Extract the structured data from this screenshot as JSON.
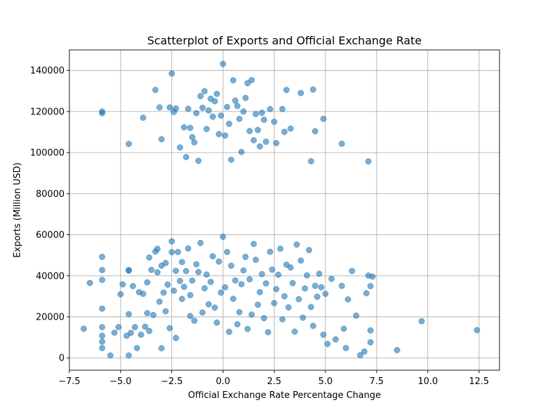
{
  "chart_data": {
    "type": "scatter",
    "title": "Scatterplot of Exports and Official Exchange Rate",
    "xlabel": "Official Exchange Rate Percentage Change",
    "ylabel": "Exports (Million USD)",
    "xlim": [
      -7.5,
      13.5
    ],
    "ylim": [
      -6000,
      150000
    ],
    "xticks": [
      -7.5,
      -5.0,
      -2.5,
      0.0,
      2.5,
      5.0,
      7.5,
      10.0,
      12.5
    ],
    "xtick_labels": [
      "−7.5",
      "−5.0",
      "−2.5",
      "0.0",
      "2.5",
      "5.0",
      "7.5",
      "10.0",
      "12.5"
    ],
    "yticks": [
      0,
      20000,
      40000,
      60000,
      80000,
      100000,
      120000,
      140000
    ],
    "ytick_labels": [
      "0",
      "20000",
      "40000",
      "60000",
      "80000",
      "100000",
      "120000",
      "140000"
    ],
    "grid": true,
    "marker_color": "#1f77b4",
    "marker_alpha": 0.6,
    "series": [
      {
        "x": [
          -6.8,
          -6.5,
          -5.9,
          -5.9,
          -5.9,
          -5.9,
          -5.9,
          -5.9,
          -5.9,
          -5.9,
          -5.9,
          -5.5,
          -5.3,
          -5.1,
          -5.0,
          -4.9,
          -4.7,
          -4.6,
          -4.6,
          -4.6,
          -4.6,
          -4.5,
          -4.4,
          -4.3,
          -4.2,
          -4.1,
          -4.0,
          -3.9,
          -3.8,
          -3.7,
          -3.7,
          -3.6,
          -3.6,
          -3.5,
          -3.4,
          -3.3,
          -3.2,
          -3.2,
          -3.1,
          -3.0,
          -3.0,
          -2.9,
          -2.8,
          -2.8,
          -2.7,
          -2.6,
          -2.5,
          -2.5,
          -2.4,
          -2.3,
          -2.3,
          -2.2,
          -2.1,
          -2.0,
          -2.0,
          -1.9,
          -1.8,
          -1.7,
          -1.6,
          -1.6,
          -1.5,
          -1.4,
          -1.3,
          -1.2,
          -1.1,
          -1.0,
          -0.9,
          -0.8,
          -0.7,
          -0.6,
          -0.5,
          -0.4,
          -0.3,
          -0.2,
          -0.1,
          0.0,
          0.1,
          0.2,
          0.3,
          0.4,
          0.5,
          0.6,
          0.7,
          0.8,
          0.9,
          1.0,
          1.1,
          1.2,
          1.3,
          1.4,
          1.5,
          1.6,
          1.7,
          1.8,
          1.9,
          2.0,
          2.1,
          2.2,
          2.3,
          2.4,
          2.5,
          2.6,
          2.7,
          2.8,
          2.9,
          3.0,
          3.1,
          3.2,
          3.3,
          3.4,
          3.5,
          3.6,
          3.7,
          3.8,
          3.9,
          4.0,
          4.1,
          4.2,
          4.3,
          4.4,
          4.5,
          4.6,
          4.7,
          4.8,
          4.9,
          5.0,
          5.1,
          5.3,
          5.5,
          5.8,
          5.9,
          6.0,
          6.1,
          6.3,
          6.5,
          6.7,
          6.9,
          7.0,
          7.1,
          7.2,
          7.2,
          7.2,
          7.3,
          8.5,
          9.7,
          12.4,
          -5.9,
          -4.6,
          -3.9,
          -3.3,
          -3.1,
          -3.0,
          -2.6,
          -2.5,
          -2.4,
          -2.3,
          -2.1,
          -1.9,
          -1.8,
          -1.7,
          -1.6,
          -1.5,
          -1.4,
          -1.3,
          -1.2,
          -1.1,
          -1.0,
          -0.9,
          -0.8,
          -0.7,
          -0.6,
          -0.5,
          -0.4,
          -0.3,
          -0.2,
          -0.1,
          0.0,
          0.1,
          0.2,
          0.3,
          0.4,
          0.5,
          0.6,
          0.7,
          0.8,
          0.9,
          1.0,
          1.1,
          1.2,
          1.3,
          1.4,
          1.5,
          1.6,
          1.7,
          1.8,
          1.9,
          2.0,
          2.1,
          2.3,
          2.5,
          2.6,
          2.9,
          3.0,
          3.1,
          3.3,
          3.8,
          4.3,
          4.4,
          4.5,
          4.9,
          5.8,
          7.1
        ],
        "y": [
          14200,
          36500,
          119200,
          49200,
          42800,
          38000,
          24000,
          15000,
          10800,
          7900,
          4800,
          1200,
          12300,
          15000,
          31000,
          35800,
          10800,
          42800,
          42500,
          21300,
          1200,
          12200,
          35000,
          15000,
          4800,
          32000,
          11300,
          31200,
          15200,
          21800,
          36800,
          13100,
          48900,
          42900,
          20900,
          51800,
          53100,
          41700,
          27400,
          44900,
          4700,
          31800,
          22700,
          46200,
          35700,
          14500,
          56800,
          51500,
          32700,
          42400,
          9700,
          51600,
          37500,
          28700,
          46700,
          34600,
          42300,
          53300,
          30600,
          20400,
          37700,
          18100,
          45600,
          41800,
          56000,
          22100,
          33900,
          40600,
          26100,
          37000,
          49500,
          24500,
          17200,
          46900,
          31800,
          59000,
          34400,
          51600,
          12700,
          44900,
          28800,
          37700,
          16400,
          22300,
          35900,
          42600,
          49200,
          14100,
          38300,
          21100,
          55500,
          47800,
          25900,
          32000,
          40800,
          19400,
          36300,
          12500,
          51700,
          43000,
          26700,
          33500,
          40500,
          53200,
          18800,
          30000,
          45400,
          24600,
          44000,
          36400,
          12800,
          55200,
          28600,
          47400,
          19600,
          33800,
          40200,
          52500,
          24800,
          15600,
          35100,
          29800,
          41000,
          34400,
          11300,
          31200,
          6800,
          38500,
          9000,
          35100,
          14200,
          4800,
          28500,
          42300,
          20600,
          1300,
          3100,
          31500,
          40100,
          13400,
          35000,
          7600,
          39600,
          3800,
          17900,
          13500,
          120000,
          104200,
          117000,
          130500,
          122000,
          106500,
          122000,
          138500,
          119800,
          121500,
          102500,
          112300,
          97800,
          121300,
          112000,
          107500,
          105000,
          119200,
          96000,
          127500,
          121800,
          129900,
          111500,
          120500,
          126200,
          117500,
          125000,
          128600,
          109000,
          118000,
          143200,
          108300,
          122200,
          114000,
          96500,
          135200,
          125300,
          122700,
          116400,
          100300,
          120000,
          126600,
          133800,
          110500,
          135300,
          106000,
          118800,
          111000,
          103000,
          119400,
          116000,
          105300,
          121200,
          115000,
          104600,
          121200,
          110100,
          130500,
          111700,
          129000,
          95800,
          130700,
          110400,
          116400,
          104300,
          95700
        ]
      }
    ]
  }
}
